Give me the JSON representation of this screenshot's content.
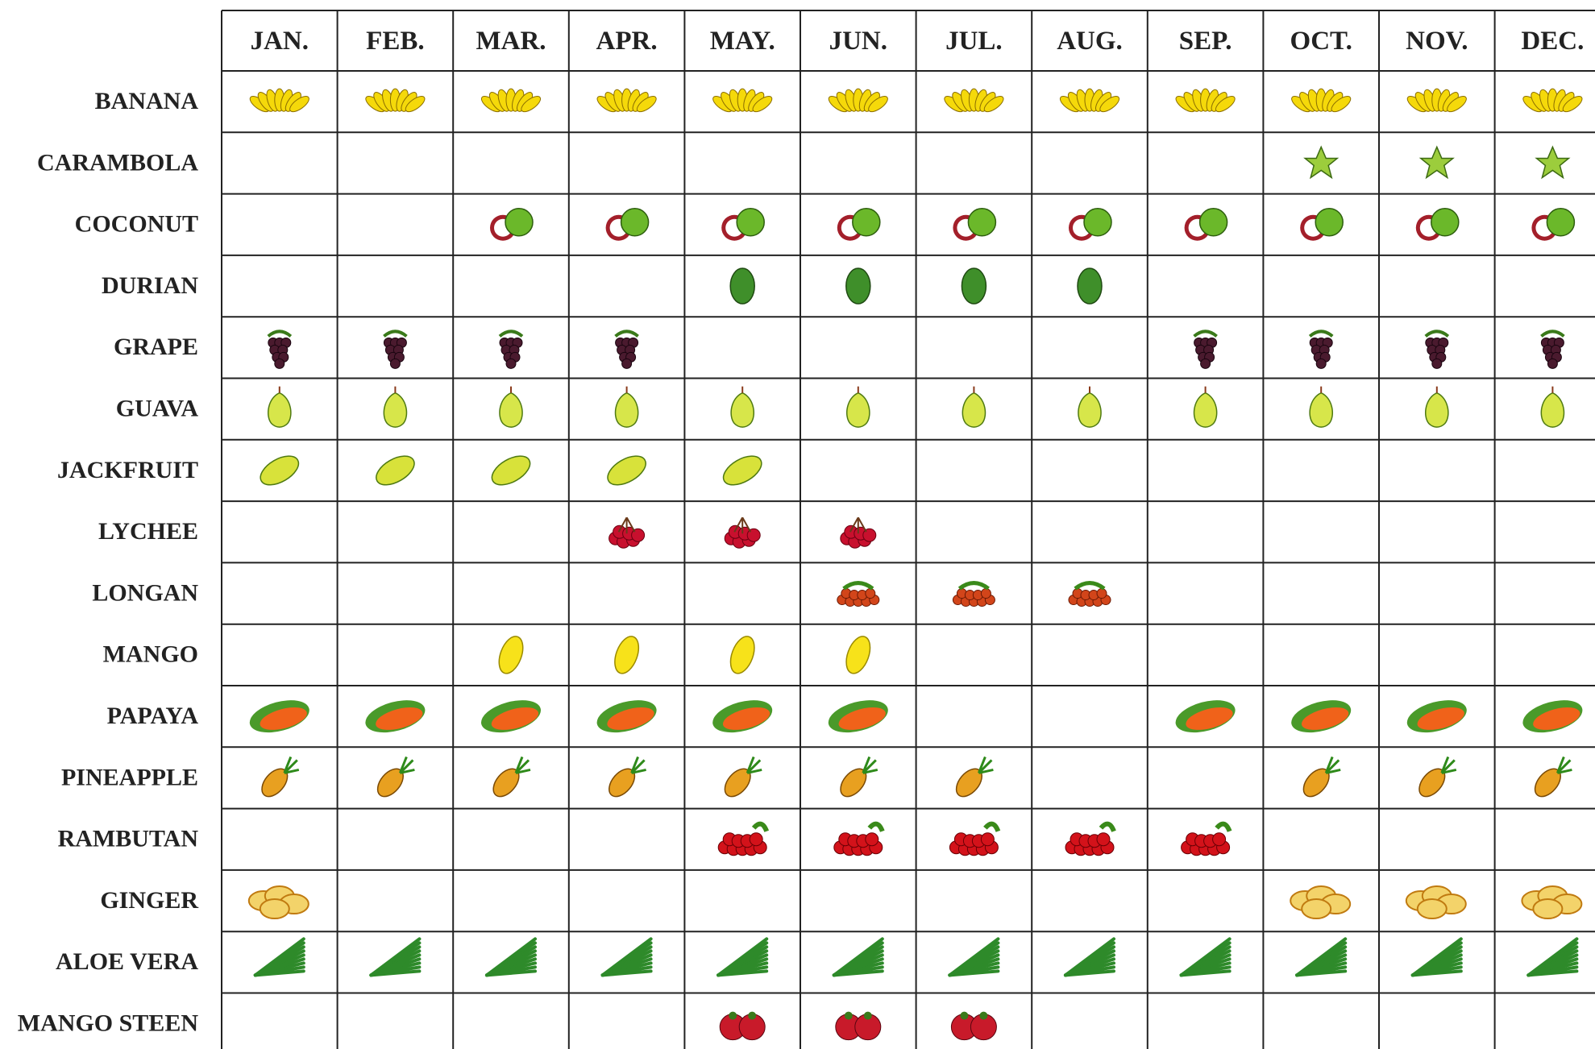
{
  "months": [
    "JAN.",
    "FEB.",
    "MAR.",
    "APR.",
    "MAY.",
    "JUN.",
    "JUL.",
    "AUG.",
    "SEP.",
    "OCT.",
    "NOV.",
    "DEC."
  ],
  "rows": [
    {
      "name": "BANANA",
      "in_season": [
        true,
        true,
        true,
        true,
        true,
        true,
        true,
        true,
        true,
        true,
        true,
        true
      ]
    },
    {
      "name": "CARAMBOLA",
      "in_season": [
        false,
        false,
        false,
        false,
        false,
        false,
        false,
        false,
        false,
        true,
        true,
        true
      ]
    },
    {
      "name": "COCONUT",
      "in_season": [
        false,
        false,
        true,
        true,
        true,
        true,
        true,
        true,
        true,
        true,
        true,
        true
      ]
    },
    {
      "name": "DURIAN",
      "in_season": [
        false,
        false,
        false,
        false,
        true,
        true,
        true,
        true,
        false,
        false,
        false,
        false
      ]
    },
    {
      "name": "GRAPE",
      "in_season": [
        true,
        true,
        true,
        true,
        false,
        false,
        false,
        false,
        true,
        true,
        true,
        true
      ]
    },
    {
      "name": "GUAVA",
      "in_season": [
        true,
        true,
        true,
        true,
        true,
        true,
        true,
        true,
        true,
        true,
        true,
        true
      ]
    },
    {
      "name": "JACKFRUIT",
      "in_season": [
        true,
        true,
        true,
        true,
        true,
        false,
        false,
        false,
        false,
        false,
        false,
        false
      ]
    },
    {
      "name": "LYCHEE",
      "in_season": [
        false,
        false,
        false,
        true,
        true,
        true,
        false,
        false,
        false,
        false,
        false,
        false
      ]
    },
    {
      "name": "LONGAN",
      "in_season": [
        false,
        false,
        false,
        false,
        false,
        true,
        true,
        true,
        false,
        false,
        false,
        false
      ]
    },
    {
      "name": "MANGO",
      "in_season": [
        false,
        false,
        true,
        true,
        true,
        true,
        false,
        false,
        false,
        false,
        false,
        false
      ]
    },
    {
      "name": "PAPAYA",
      "in_season": [
        true,
        true,
        true,
        true,
        true,
        true,
        false,
        false,
        true,
        true,
        true,
        true
      ]
    },
    {
      "name": "PINEAPPLE",
      "in_season": [
        true,
        true,
        true,
        true,
        true,
        true,
        true,
        false,
        false,
        true,
        true,
        true
      ]
    },
    {
      "name": "RAMBUTAN",
      "in_season": [
        false,
        false,
        false,
        false,
        true,
        true,
        true,
        true,
        true,
        false,
        false,
        false
      ]
    },
    {
      "name": "GINGER",
      "in_season": [
        true,
        false,
        false,
        false,
        false,
        false,
        false,
        false,
        false,
        true,
        true,
        true
      ]
    },
    {
      "name": "ALOE VERA",
      "in_season": [
        true,
        true,
        true,
        true,
        true,
        true,
        true,
        true,
        true,
        true,
        true,
        true
      ]
    },
    {
      "name": "MANGO STEEN",
      "in_season": [
        false,
        false,
        false,
        false,
        true,
        true,
        true,
        false,
        false,
        false,
        false,
        false
      ]
    }
  ]
}
